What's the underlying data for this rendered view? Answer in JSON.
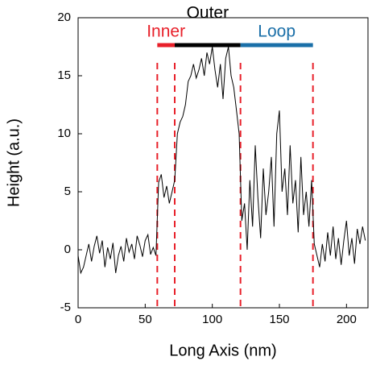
{
  "chart_data": {
    "type": "line",
    "xlabel": "Long Axis (nm)",
    "ylabel": "Height (a.u.)",
    "x": [
      0,
      2,
      4,
      6,
      8,
      10,
      12,
      14,
      16,
      18,
      20,
      22,
      24,
      26,
      28,
      30,
      32,
      34,
      36,
      38,
      40,
      42,
      44,
      46,
      48,
      50,
      52,
      54,
      56,
      58,
      60,
      62,
      64,
      66,
      68,
      70,
      72,
      74,
      76,
      78,
      80,
      82,
      84,
      86,
      88,
      90,
      92,
      94,
      96,
      98,
      100,
      102,
      104,
      106,
      108,
      110,
      112,
      114,
      116,
      118,
      120,
      122,
      124,
      126,
      128,
      130,
      132,
      134,
      136,
      138,
      140,
      142,
      144,
      146,
      148,
      150,
      152,
      154,
      156,
      158,
      160,
      162,
      164,
      166,
      168,
      170,
      172,
      174,
      176,
      178,
      180,
      182,
      184,
      186,
      188,
      190,
      192,
      194,
      196,
      198,
      200,
      202,
      204,
      206,
      208,
      210,
      212,
      214
    ],
    "values": [
      -0.5,
      -2,
      -1.5,
      -0.5,
      0.5,
      -1,
      0.3,
      1.2,
      -0.3,
      0.8,
      -1.5,
      0.2,
      -0.8,
      0.6,
      -2,
      -0.5,
      0.3,
      -1,
      1,
      -0.2,
      0.5,
      -0.8,
      1.2,
      0.4,
      -0.6,
      0.8,
      1.3,
      -0.4,
      0.2,
      -0.5,
      5.8,
      6.5,
      4.5,
      5.5,
      4,
      5,
      6,
      10,
      11,
      11.5,
      12.5,
      14.5,
      15,
      16,
      14.8,
      15.5,
      16.5,
      15,
      17,
      16,
      17.5,
      15.5,
      14,
      16,
      13,
      16.5,
      17.5,
      15,
      14,
      12,
      10,
      2.5,
      4,
      0,
      6,
      2,
      9,
      4.5,
      1,
      7,
      3,
      5,
      8,
      2,
      10,
      12,
      5,
      7,
      3,
      9,
      4,
      6,
      1.5,
      8,
      3,
      5,
      2,
      6,
      0.5,
      -0.5,
      -1.5,
      0.5,
      -1,
      1.5,
      -0.5,
      2,
      -0.8,
      1,
      -1.3,
      0.8,
      2.5,
      -0.5,
      1,
      -1.2,
      1.8,
      0.5,
      2,
      0.8
    ],
    "color": "#000000",
    "xlim": [
      0,
      216
    ],
    "ylim": [
      -5,
      20
    ],
    "xticks": [
      0,
      50,
      100,
      150,
      200
    ],
    "yticks": [
      -5,
      0,
      5,
      10,
      15,
      20
    ],
    "vlines": [
      59,
      72,
      121,
      175
    ],
    "vline_color": "#e8202a",
    "regions": [
      {
        "label": "Inner",
        "start": 59,
        "end": 72,
        "color": "#e8202a"
      },
      {
        "label": "Outer",
        "start": 72,
        "end": 121,
        "color": "#000000"
      },
      {
        "label": "Loop",
        "start": 121,
        "end": 175,
        "color": "#1a6fa8"
      }
    ]
  }
}
